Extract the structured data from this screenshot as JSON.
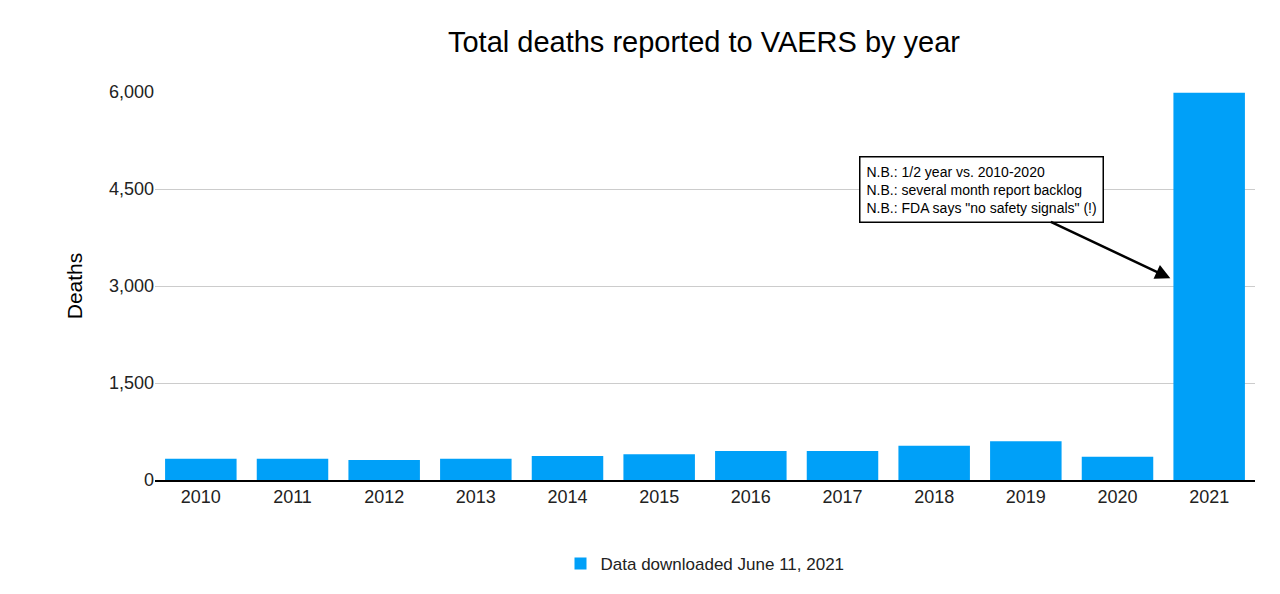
{
  "chart_data": {
    "type": "bar",
    "title": "Total deaths reported to VAERS by year",
    "y_label": "Deaths",
    "categories": [
      "2010",
      "2011",
      "2012",
      "2013",
      "2014",
      "2015",
      "2016",
      "2017",
      "2018",
      "2019",
      "2020",
      "2021"
    ],
    "series": [
      {
        "name": "Data downloaded June 11, 2021",
        "color": "#00a0f8",
        "values": [
          330,
          330,
          310,
          330,
          370,
          400,
          450,
          450,
          530,
          600,
          360,
          5990
        ]
      }
    ],
    "ylim": [
      0,
      6000
    ],
    "yticks": [
      0,
      {
        "value": 1500,
        "label": "1,500"
      },
      {
        "value": 3000,
        "label": "3,000"
      },
      {
        "value": 4500,
        "label": "4,500"
      },
      {
        "value": 6000,
        "label": "6,000"
      }
    ],
    "grid": true,
    "legend": "bottom",
    "annotation": [
      "N.B.: 1/2 year vs. 2010-2020",
      "N.B.: several month report backlog",
      "N.B.: FDA says \"no safety signals\" (!)"
    ]
  }
}
